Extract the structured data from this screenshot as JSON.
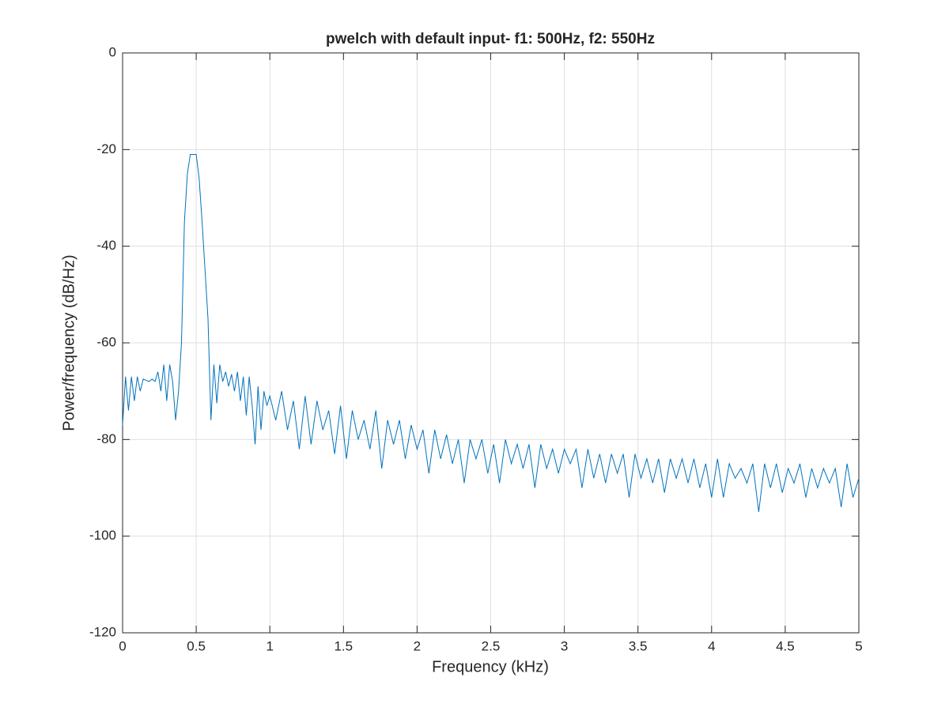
{
  "chart_data": {
    "type": "line",
    "title": "pwelch with default input- f1: 500Hz, f2: 550Hz",
    "x_label": "Frequency (kHz)",
    "y_label": "Power/frequency (dB/Hz)",
    "color": "#0072bd",
    "grid": true,
    "xlim": [
      0,
      5
    ],
    "ylim": [
      -120,
      0
    ],
    "xticks": [
      0,
      0.5,
      1,
      1.5,
      2,
      2.5,
      3,
      3.5,
      4,
      4.5,
      5
    ],
    "yticks": [
      -120,
      -100,
      -80,
      -60,
      -40,
      -20,
      0
    ],
    "x": [
      0,
      0.02,
      0.04,
      0.06,
      0.08,
      0.1,
      0.12,
      0.14,
      0.18,
      0.2,
      0.22,
      0.24,
      0.26,
      0.28,
      0.3,
      0.32,
      0.34,
      0.36,
      0.38,
      0.4,
      0.42,
      0.44,
      0.46,
      0.48,
      0.5,
      0.52,
      0.54,
      0.56,
      0.58,
      0.6,
      0.62,
      0.64,
      0.66,
      0.68,
      0.7,
      0.72,
      0.74,
      0.76,
      0.78,
      0.8,
      0.82,
      0.84,
      0.86,
      0.88,
      0.9,
      0.92,
      0.94,
      0.96,
      0.98,
      1.0,
      1.04,
      1.08,
      1.12,
      1.16,
      1.2,
      1.24,
      1.28,
      1.32,
      1.36,
      1.4,
      1.44,
      1.48,
      1.52,
      1.56,
      1.6,
      1.64,
      1.68,
      1.72,
      1.76,
      1.8,
      1.84,
      1.88,
      1.92,
      1.96,
      2.0,
      2.04,
      2.08,
      2.12,
      2.16,
      2.2,
      2.24,
      2.28,
      2.32,
      2.36,
      2.4,
      2.44,
      2.48,
      2.52,
      2.56,
      2.6,
      2.64,
      2.68,
      2.72,
      2.76,
      2.8,
      2.84,
      2.88,
      2.92,
      2.96,
      3.0,
      3.04,
      3.08,
      3.12,
      3.16,
      3.2,
      3.24,
      3.28,
      3.32,
      3.36,
      3.4,
      3.44,
      3.48,
      3.52,
      3.56,
      3.6,
      3.64,
      3.68,
      3.72,
      3.76,
      3.8,
      3.84,
      3.88,
      3.92,
      3.96,
      4.0,
      4.04,
      4.08,
      4.12,
      4.16,
      4.2,
      4.24,
      4.28,
      4.32,
      4.36,
      4.4,
      4.44,
      4.48,
      4.52,
      4.56,
      4.6,
      4.64,
      4.68,
      4.72,
      4.76,
      4.8,
      4.84,
      4.88,
      4.92,
      4.96,
      5.0
    ],
    "values": [
      -77,
      -67,
      -74,
      -67,
      -72,
      -67,
      -70,
      -67.5,
      -68,
      -67.5,
      -68,
      -66,
      -70,
      -64.5,
      -72,
      -64.5,
      -68,
      -76,
      -70,
      -60,
      -35,
      -25,
      -21,
      -21,
      -21,
      -26,
      -35,
      -45,
      -55,
      -76,
      -64.5,
      -72.5,
      -64.5,
      -68,
      -66,
      -69,
      -66.5,
      -70,
      -66,
      -72,
      -67,
      -75,
      -67,
      -73,
      -81,
      -69,
      -78,
      -70,
      -73,
      -71,
      -76,
      -70,
      -78,
      -72,
      -82,
      -71,
      -81,
      -72,
      -78,
      -74,
      -83,
      -73,
      -84,
      -74,
      -80,
      -76,
      -82,
      -74,
      -86,
      -76,
      -81,
      -76,
      -84,
      -77,
      -82,
      -78,
      -87,
      -78,
      -84,
      -79,
      -85,
      -80,
      -89,
      -80,
      -84,
      -80,
      -87,
      -81,
      -89,
      -80,
      -85,
      -81,
      -86,
      -81,
      -90,
      -81,
      -86,
      -82,
      -87,
      -82,
      -85,
      -82,
      -90,
      -82,
      -88,
      -83,
      -89,
      -83,
      -87,
      -83,
      -92,
      -83,
      -88,
      -84,
      -89,
      -84,
      -91,
      -84,
      -88,
      -84,
      -89,
      -84,
      -90,
      -85,
      -92,
      -84,
      -92,
      -85,
      -88,
      -86,
      -89,
      -85,
      -95,
      -85,
      -90,
      -85,
      -91,
      -86,
      -89,
      -85,
      -92,
      -86,
      -90,
      -86,
      -89,
      -86,
      -94,
      -85,
      -92,
      -88
    ]
  }
}
